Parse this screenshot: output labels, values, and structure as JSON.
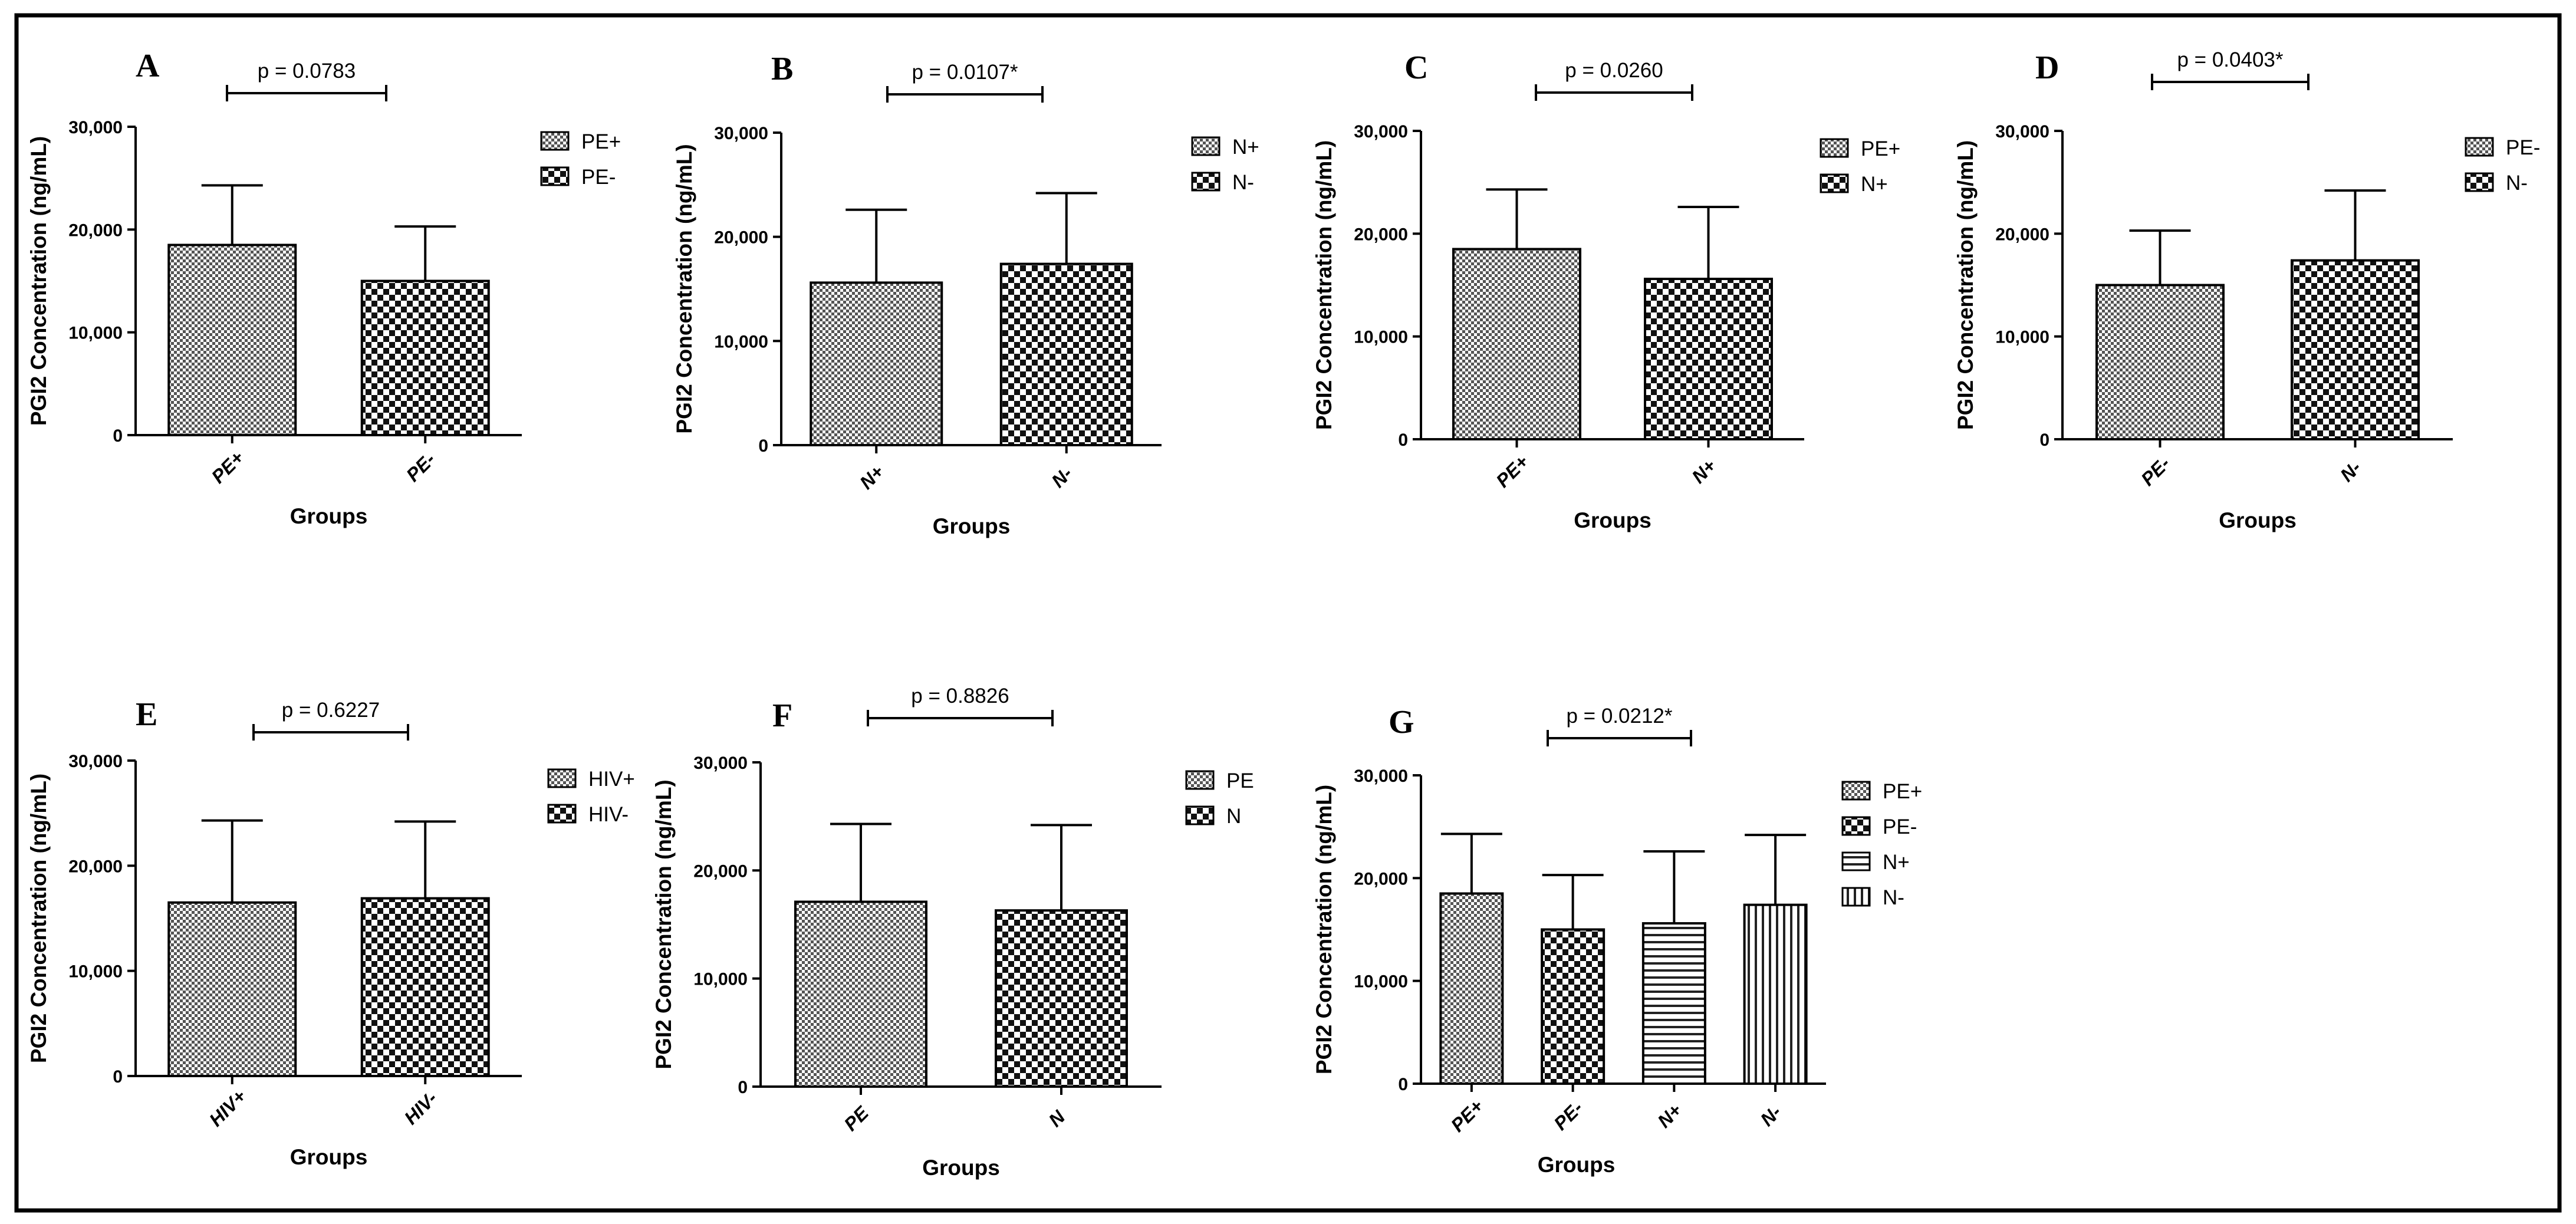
{
  "chart_data": [
    {
      "type": "bar",
      "panel": "A",
      "categories": [
        "PE+",
        "PE-"
      ],
      "values": [
        18500,
        15000
      ],
      "errors": [
        5800,
        5300
      ],
      "patterns": [
        "dots",
        "checker"
      ],
      "legend": [
        "PE+",
        "PE-"
      ],
      "p_value": "p = 0.0783",
      "xlabel": "Groups",
      "ylabel": "PGI2 Concentration (ng/mL)",
      "ylim": [
        0,
        30000
      ],
      "yticks": [
        0,
        10000,
        20000,
        30000
      ],
      "ytick_labels": [
        "0",
        "10,000",
        "20,000",
        "30,000"
      ]
    },
    {
      "type": "bar",
      "panel": "B",
      "categories": [
        "N+",
        "N-"
      ],
      "values": [
        15600,
        17400
      ],
      "errors": [
        7000,
        6800
      ],
      "patterns": [
        "dots",
        "checker"
      ],
      "legend": [
        "N+",
        "N-"
      ],
      "p_value": "p = 0.0107*",
      "xlabel": "Groups",
      "ylabel": "PGI2 Concentration (ng/mL)",
      "ylim": [
        0,
        30000
      ],
      "yticks": [
        0,
        10000,
        20000,
        30000
      ],
      "ytick_labels": [
        "0",
        "10,000",
        "20,000",
        "30,000"
      ]
    },
    {
      "type": "bar",
      "panel": "C",
      "categories": [
        "PE+",
        "N+"
      ],
      "values": [
        18500,
        15600
      ],
      "errors": [
        5800,
        7000
      ],
      "patterns": [
        "dots",
        "checker"
      ],
      "legend": [
        "PE+",
        "N+"
      ],
      "p_value": "p = 0.0260",
      "xlabel": "Groups",
      "ylabel": "PGI2 Concentration (ng/mL)",
      "ylim": [
        0,
        30000
      ],
      "yticks": [
        0,
        10000,
        20000,
        30000
      ],
      "ytick_labels": [
        "0",
        "10,000",
        "20,000",
        "30,000"
      ]
    },
    {
      "type": "bar",
      "panel": "D",
      "categories": [
        "PE-",
        "N-"
      ],
      "values": [
        15000,
        17400
      ],
      "errors": [
        5300,
        6800
      ],
      "patterns": [
        "dots",
        "checker"
      ],
      "legend": [
        "PE-",
        "N-"
      ],
      "p_value": "p = 0.0403*",
      "xlabel": "Groups",
      "ylabel": "PGI2 Concentration (ng/mL)",
      "ylim": [
        0,
        30000
      ],
      "yticks": [
        0,
        10000,
        20000,
        30000
      ],
      "ytick_labels": [
        "0",
        "10,000",
        "20,000",
        "30,000"
      ]
    },
    {
      "type": "bar",
      "panel": "E",
      "categories": [
        "HIV+",
        "HIV-"
      ],
      "values": [
        16500,
        16900
      ],
      "errors": [
        7800,
        7300
      ],
      "patterns": [
        "dots",
        "checker"
      ],
      "legend": [
        "HIV+",
        "HIV-"
      ],
      "p_value": "p = 0.6227",
      "xlabel": "Groups",
      "ylabel": "PGI2 Concentration (ng/mL)",
      "ylim": [
        0,
        30000
      ],
      "yticks": [
        0,
        10000,
        20000,
        30000
      ],
      "ytick_labels": [
        "0",
        "10,000",
        "20,000",
        "30,000"
      ]
    },
    {
      "type": "bar",
      "panel": "F",
      "categories": [
        "PE",
        "N"
      ],
      "values": [
        17100,
        16300
      ],
      "errors": [
        7200,
        7900
      ],
      "patterns": [
        "dots",
        "checker"
      ],
      "legend": [
        "PE",
        "N"
      ],
      "p_value": "p = 0.8826",
      "xlabel": "Groups",
      "ylabel": "PGI2 Concentration (ng/mL)",
      "ylim": [
        0,
        30000
      ],
      "yticks": [
        0,
        10000,
        20000,
        30000
      ],
      "ytick_labels": [
        "0",
        "10,000",
        "20,000",
        "30,000"
      ]
    },
    {
      "type": "bar",
      "panel": "G",
      "categories": [
        "PE+",
        "PE-",
        "N+",
        "N-"
      ],
      "values": [
        18500,
        15000,
        15600,
        17400
      ],
      "errors": [
        5800,
        5300,
        7000,
        6800
      ],
      "patterns": [
        "dots",
        "checker",
        "hlines",
        "vlines"
      ],
      "legend": [
        "PE+",
        "PE-",
        "N+",
        "N-"
      ],
      "p_value": "p = 0.0212*",
      "xlabel": "Groups",
      "ylabel": "PGI2 Concentration (ng/mL)",
      "ylim": [
        0,
        30000
      ],
      "yticks": [
        0,
        10000,
        20000,
        30000
      ],
      "ytick_labels": [
        "0",
        "10,000",
        "20,000",
        "30,000"
      ]
    }
  ]
}
